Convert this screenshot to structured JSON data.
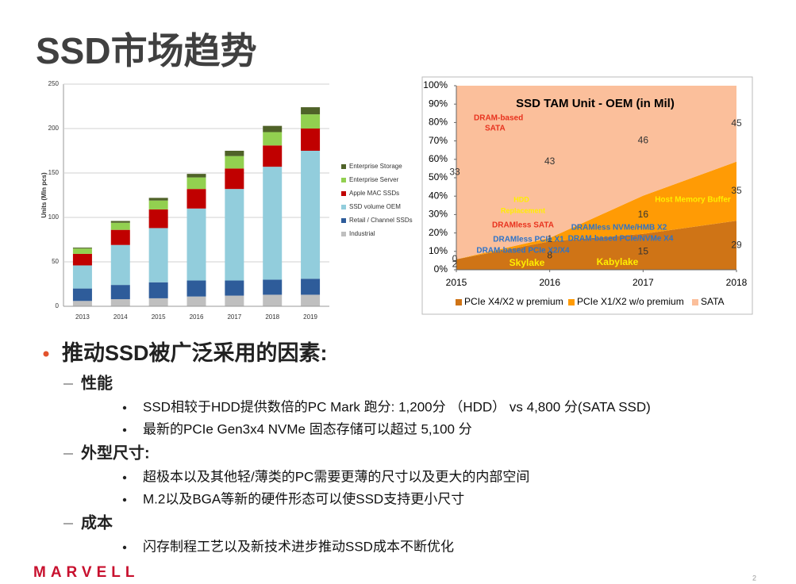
{
  "title": "SSD市场趋势",
  "charts": [
    {
      "type": "bar",
      "stacked": true,
      "y_label": "Units (Mln pcs)",
      "categories": [
        "2013",
        "2014",
        "2015",
        "2016",
        "2017",
        "2018",
        "2019"
      ],
      "ylim": [
        0,
        250
      ],
      "yticks": [
        0,
        50,
        100,
        150,
        200,
        250
      ],
      "series": [
        {
          "name": "Industrial",
          "color": "#bfbfbf",
          "values": [
            6,
            8,
            9,
            11,
            12,
            13,
            13
          ]
        },
        {
          "name": "Retail / Channel SSDs",
          "color": "#2e5c9a",
          "values": [
            14,
            16,
            18,
            18,
            17,
            17,
            18
          ]
        },
        {
          "name": "SSD volume OEM",
          "color": "#92cddc",
          "values": [
            26,
            45,
            61,
            81,
            103,
            127,
            144
          ]
        },
        {
          "name": "Apple MAC SSDs",
          "color": "#c00000",
          "values": [
            13,
            17,
            21,
            22,
            23,
            24,
            25
          ]
        },
        {
          "name": "Enterprise Server",
          "color": "#92d050",
          "values": [
            6,
            8,
            10,
            13,
            14,
            15,
            16
          ]
        },
        {
          "name": "Enterprise Storage",
          "color": "#4f6228",
          "values": [
            1,
            2,
            3,
            4,
            6,
            7,
            8
          ]
        }
      ]
    },
    {
      "type": "area",
      "stacking": "percent",
      "title": "SSD TAM Unit - OEM (in Mil)",
      "x": [
        2015,
        2016,
        2017,
        2018
      ],
      "xlim": [
        2015,
        2018
      ],
      "xticks": [
        2015,
        2016,
        2017,
        2018
      ],
      "ylim": [
        0,
        100
      ],
      "yticks": [
        {
          "value": 0,
          "label": "0%"
        },
        {
          "value": 10,
          "label": "10%"
        },
        {
          "value": 20,
          "label": "20%"
        },
        {
          "value": 30,
          "label": "30%"
        },
        {
          "value": 40,
          "label": "40%"
        },
        {
          "value": 50,
          "label": "50%"
        },
        {
          "value": 60,
          "label": "60%"
        },
        {
          "value": 70,
          "label": "70%"
        },
        {
          "value": 80,
          "label": "80%"
        },
        {
          "value": 90,
          "label": "90%"
        },
        {
          "value": 100,
          "label": "100%"
        }
      ],
      "series": [
        {
          "name": "PCIe X4/X2 w premium",
          "color": "#cf7416",
          "values": [
            2,
            8,
            15,
            29
          ]
        },
        {
          "name": "PCIe X1/X2 w/o premium",
          "color": "#ff9b05",
          "values": [
            0,
            1,
            16,
            35
          ]
        },
        {
          "name": "SATA",
          "color": "#fbbf9b",
          "values": [
            33,
            43,
            46,
            45
          ]
        }
      ],
      "annotations": [
        "DRAM-based",
        "SATA",
        "HDD",
        "Replacement",
        "DRAMless SATA",
        "DRAMless PCIe X1",
        "DRAM-based PCIe X2/X4",
        "Skylake",
        "Kabylake",
        "Host Memory Buffer",
        "DRAMless NVMe/HMB X2",
        "DRAM-based PCIe/NVMe X4"
      ]
    }
  ],
  "sections": [
    {
      "heading": "推动SSD被广泛采用的因素:",
      "items": [
        {
          "label": "性能",
          "bullets": [
            "SSD相较于HDD提供数倍的PC Mark 跑分: 1,200分 （HDD） vs  4,800 分(SATA SSD)",
            "最新的PCIe Gen3x4 NVMe 固态存储可以超过 5,100 分"
          ]
        },
        {
          "label": "外型尺寸:",
          "bullets": [
            "超极本以及其他轻/薄类的PC需要更薄的尺寸以及更大的内部空间",
            "M.2以及BGA等新的硬件形态可以使SSD支持更小尺寸"
          ]
        },
        {
          "label": "成本",
          "bullets": [
            "闪存制程工艺以及新技术进步推动SSD成本不断优化"
          ]
        }
      ]
    }
  ],
  "footer": {
    "logo": "MARVELL",
    "page": "2"
  }
}
